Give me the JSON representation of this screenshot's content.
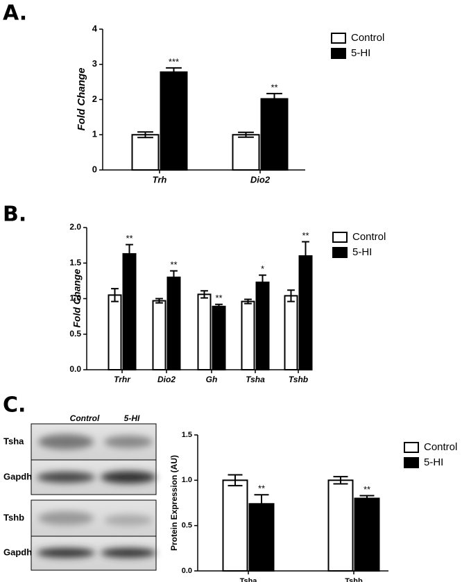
{
  "panel_labels": [
    "A.",
    "B.",
    "C."
  ],
  "blot": {
    "columns": [
      "Control",
      "5-HI"
    ],
    "rows": [
      "Tsha",
      "Gapdh",
      "Tshb",
      "Gapdh"
    ]
  },
  "chart_data": [
    {
      "type": "bar",
      "ylabel": "Fold Change",
      "categories": [
        "Trh",
        "Dio2"
      ],
      "series": [
        {
          "name": "Control",
          "color": "#ffffff",
          "values": [
            1.0,
            1.0
          ],
          "errors": [
            0.08,
            0.07
          ]
        },
        {
          "name": "5-HI",
          "color": "#000000",
          "values": [
            2.78,
            2.02
          ],
          "errors": [
            0.12,
            0.15
          ],
          "annotations": [
            "***",
            "**"
          ]
        }
      ],
      "ylim": [
        0,
        4
      ],
      "yticks": [
        0,
        1,
        2,
        3,
        4
      ],
      "legend": "upper right"
    },
    {
      "type": "bar",
      "ylabel": "Fold Change",
      "categories": [
        "Trhr",
        "Dio2",
        "Gh",
        "Tsha",
        "Tshb"
      ],
      "series": [
        {
          "name": "Control",
          "color": "#ffffff",
          "values": [
            1.05,
            0.97,
            1.06,
            0.96,
            1.04
          ],
          "errors": [
            0.09,
            0.03,
            0.05,
            0.03,
            0.08
          ]
        },
        {
          "name": "5-HI",
          "color": "#000000",
          "values": [
            1.63,
            1.3,
            0.89,
            1.23,
            1.6
          ],
          "errors": [
            0.13,
            0.09,
            0.03,
            0.1,
            0.2
          ],
          "annotations": [
            "**",
            "**",
            "**",
            "*",
            "**"
          ]
        }
      ],
      "ylim": [
        0,
        2
      ],
      "yticks": [
        {
          "value": 0,
          "label": "0.0"
        },
        0.5,
        {
          "value": 1,
          "label": "1.0"
        },
        1.5,
        {
          "value": 2,
          "label": "2.0"
        }
      ],
      "legend": "upper right"
    },
    {
      "type": "bar",
      "ylabel": "Protein Expression (AU)",
      "categories": [
        "Tsha",
        "Tshb"
      ],
      "series": [
        {
          "name": "Control",
          "color": "#ffffff",
          "values": [
            1.0,
            1.0
          ],
          "errors": [
            0.06,
            0.04
          ]
        },
        {
          "name": "5-HI",
          "color": "#000000",
          "values": [
            0.74,
            0.8
          ],
          "errors": [
            0.1,
            0.03
          ],
          "annotations": [
            "**",
            "**"
          ]
        }
      ],
      "ylim": [
        0,
        1.5
      ],
      "yticks": [
        {
          "value": 0,
          "label": "0.0"
        },
        0.5,
        {
          "value": 1,
          "label": "1.0"
        },
        1.5
      ],
      "legend": "upper right"
    }
  ]
}
